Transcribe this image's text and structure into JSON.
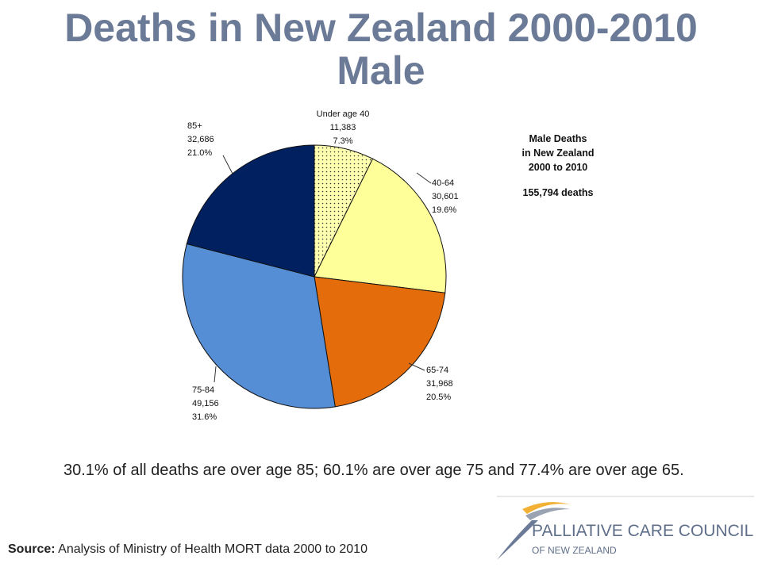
{
  "title_line1": "Deaths in New Zealand 2000-2010",
  "title_line2": "Male",
  "chart_data": {
    "type": "pie",
    "slices": [
      {
        "label": "Under age 40",
        "value": 11383,
        "value_text": "11,383",
        "percent_text": "7.3%",
        "color": "#ffffb0",
        "pattern": "dotted"
      },
      {
        "label": "40-64",
        "value": 30601,
        "value_text": "30,601",
        "percent_text": "19.6%",
        "color": "#ffff99"
      },
      {
        "label": "65-74",
        "value": 31968,
        "value_text": "31,968",
        "percent_text": "20.5%",
        "color": "#e46c0a"
      },
      {
        "label": "75-84",
        "value": 49156,
        "value_text": "49,156",
        "percent_text": "31.6%",
        "color": "#558ed5"
      },
      {
        "label": "85+",
        "value": 32686,
        "value_text": "32,686",
        "percent_text": "21.0%",
        "color": "#002060"
      }
    ],
    "legend_box": {
      "line1": "Male Deaths",
      "line2": "in New Zealand",
      "line3": "2000 to 2010",
      "total": "155,794 deaths"
    }
  },
  "caption": "30.1% of all deaths are over age 85; 60.1% are over age 75 and 77.4% are over age 65.",
  "source": {
    "label": "Source:",
    "text": " Analysis of Ministry of Health MORT data 2000 to 2010"
  },
  "logo": {
    "line1": "PALLIATIVE CARE COUNCIL",
    "line2": "OF NEW ZEALAND"
  }
}
